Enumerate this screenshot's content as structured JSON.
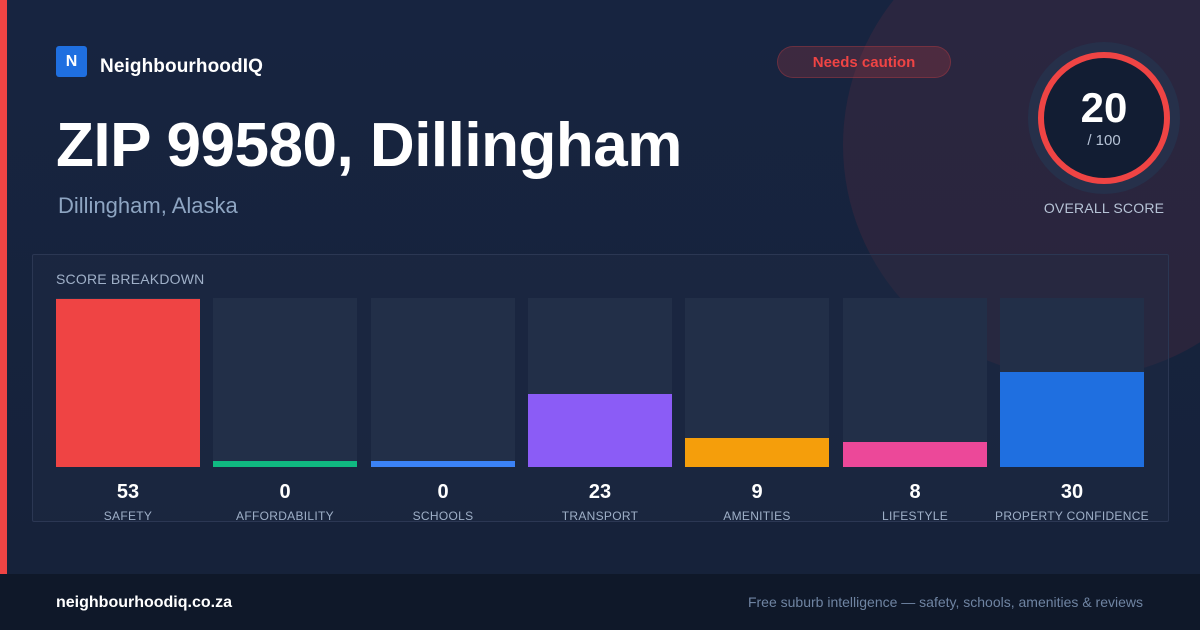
{
  "brand": {
    "logo_letter": "N",
    "name": "NeighbourhoodIQ",
    "logo_color": "#1f6fe0"
  },
  "badge": {
    "label": "Needs caution",
    "color": "#ef4444"
  },
  "header": {
    "title": "ZIP 99580, Dillingham",
    "subtitle": "Dillingham, Alaska"
  },
  "score": {
    "value": "20",
    "max": "/ 100",
    "label": "OVERALL SCORE",
    "ring_color": "#ef4444"
  },
  "breakdown": {
    "title": "SCORE BREAKDOWN",
    "items": [
      {
        "label": "SAFETY",
        "value": 53,
        "color": "#ef4444"
      },
      {
        "label": "AFFORDABILITY",
        "value": 0,
        "color": "#10b981"
      },
      {
        "label": "SCHOOLS",
        "value": 0,
        "color": "#3b82f6"
      },
      {
        "label": "TRANSPORT",
        "value": 23,
        "color": "#8b5cf6"
      },
      {
        "label": "AMENITIES",
        "value": 9,
        "color": "#f59e0b"
      },
      {
        "label": "LIFESTYLE",
        "value": 8,
        "color": "#ec4899"
      },
      {
        "label": "PROPERTY CONFIDENCE",
        "value": 30,
        "color": "#1f6fe0"
      }
    ]
  },
  "footer": {
    "domain": "neighbourhoodiq.co.za",
    "tagline": "Free suburb intelligence — safety, schools, amenities & reviews"
  }
}
